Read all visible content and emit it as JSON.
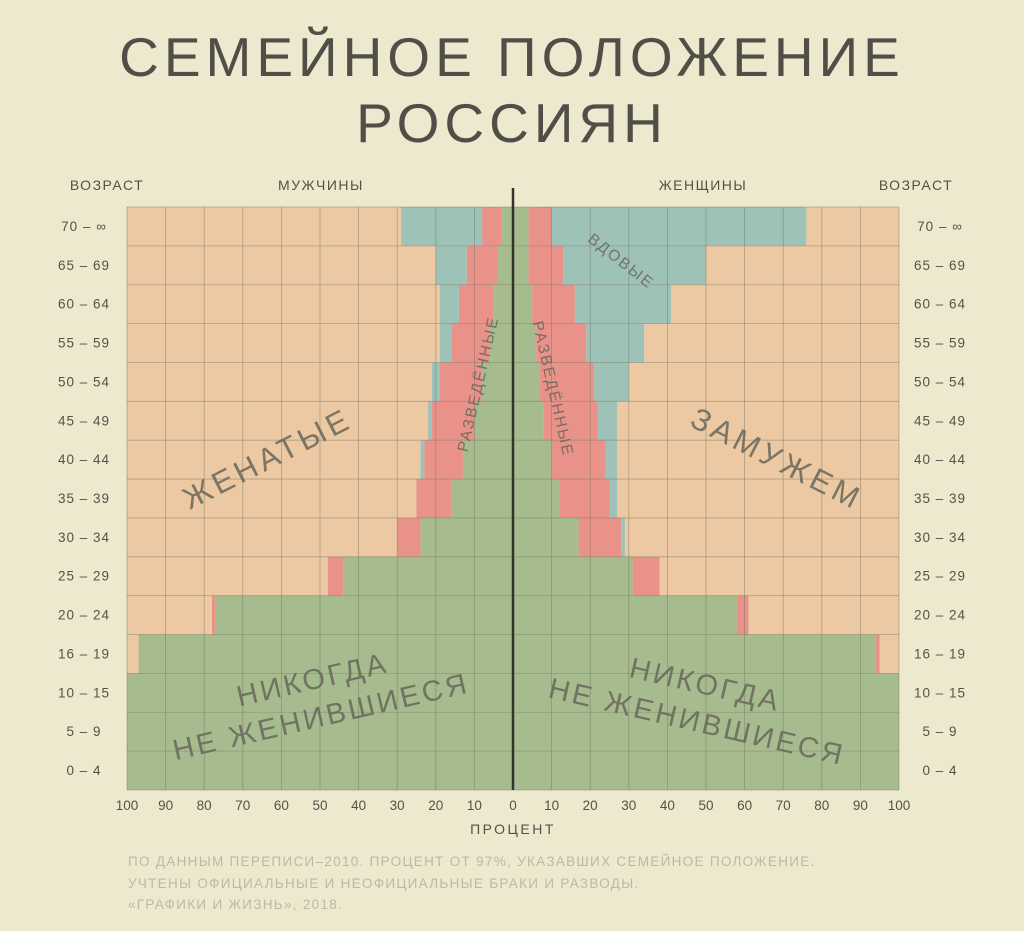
{
  "title": {
    "line1": "СЕМЕЙНОЕ ПОЛОЖЕНИЕ",
    "line2": "РОССИЯН"
  },
  "footer": {
    "line1": "ПО ДАННЫМ ПЕРЕПИСИ–2010. ПРОЦЕНТ ОТ 97%, УКАЗАВШИХ СЕМЕЙНОЕ ПОЛОЖЕНИЕ.",
    "line2": "УЧТЕНЫ ОФИЦИАЛЬНЫЕ И НЕОФИЦИАЛЬНЫЕ БРАКИ И РАЗВОДЫ.",
    "line3": "«ГРАФИКИ И ЖИЗНЬ», 2018."
  },
  "chart_data": {
    "type": "bar",
    "subtype": "population-pyramid-100pct-stacked",
    "title": "СЕМЕЙНОЕ ПОЛОЖЕНИЕ РОССИЯН",
    "xlabel": "ПРОЦЕНТ",
    "age_axis_label": "ВОЗРАСТ",
    "left_group_label": "МУЖЧИНЫ",
    "right_group_label": "ЖЕНЩИНЫ",
    "age_groups_top_to_bottom": [
      "70 – ∞",
      "65 – 69",
      "60 – 64",
      "55 – 59",
      "50 – 54",
      "45 – 49",
      "40 – 44",
      "35 – 39",
      "30 – 34",
      "25 – 29",
      "20 – 24",
      "16 – 19",
      "10 – 15",
      "5 – 9",
      "0 – 4"
    ],
    "x_ticks": [
      0,
      10,
      20,
      30,
      40,
      50,
      60,
      70,
      80,
      90,
      100
    ],
    "xlim_each_side": [
      0,
      100
    ],
    "grid": true,
    "stack_order_from_center": [
      "never_married",
      "divorced",
      "widowed",
      "married"
    ],
    "category_labels": {
      "never_married": "НИКОГДА НЕ ЖЕНИВШИЕСЯ",
      "divorced": "РАЗВЕДЁННЫЕ",
      "widowed": "ВДОВЫЕ",
      "married_men": "ЖЕНАТЫЕ",
      "married_women": "ЗАМУЖЕМ"
    },
    "colors": {
      "never_married": "#A6BC8E",
      "divorced": "#E9928A",
      "widowed": "#9FC2B8",
      "married": "#ECC9A2",
      "background": "#ECE9CE",
      "grid": "#72705C",
      "axis": "#33322C",
      "text": "#53524A",
      "area_label": "#67665A",
      "footnote": "#BCB8A6"
    },
    "series_note": "rows follow age_groups_top_to_bottom; values are percent in stack_order_from_center [never_married, divorced, widowed, married]",
    "series": {
      "men": [
        [
          3,
          5,
          21,
          71
        ],
        [
          4,
          8,
          8,
          80
        ],
        [
          5,
          9,
          5,
          81
        ],
        [
          6,
          10,
          3,
          81
        ],
        [
          8,
          11,
          2,
          79
        ],
        [
          10,
          11,
          1,
          78
        ],
        [
          13,
          10,
          1,
          76
        ],
        [
          16,
          9,
          0,
          75
        ],
        [
          24,
          6,
          0,
          70
        ],
        [
          44,
          4,
          0,
          52
        ],
        [
          77,
          1,
          0,
          22
        ],
        [
          97,
          0,
          0,
          3
        ],
        [
          100,
          0,
          0,
          0
        ],
        [
          100,
          0,
          0,
          0
        ],
        [
          100,
          0,
          0,
          0
        ]
      ],
      "women": [
        [
          4,
          6,
          66,
          24
        ],
        [
          4,
          9,
          37,
          50
        ],
        [
          5,
          11,
          25,
          59
        ],
        [
          6,
          13,
          15,
          66
        ],
        [
          7,
          14,
          9,
          70
        ],
        [
          8,
          14,
          5,
          73
        ],
        [
          10,
          14,
          3,
          73
        ],
        [
          12,
          13,
          2,
          73
        ],
        [
          17,
          11,
          1,
          71
        ],
        [
          31,
          7,
          0,
          62
        ],
        [
          58,
          3,
          0,
          39
        ],
        [
          94,
          1,
          0,
          5
        ],
        [
          100,
          0,
          0,
          0
        ],
        [
          100,
          0,
          0,
          0
        ],
        [
          100,
          0,
          0,
          0
        ]
      ]
    },
    "area_labels": [
      {
        "id": "married_men",
        "lines": [
          "ЖЕНАТЫЕ"
        ]
      },
      {
        "id": "married_women",
        "lines": [
          "ЗАМУЖЕМ"
        ]
      },
      {
        "id": "divorced_men",
        "lines": [
          "РАЗВЕДЁННЫЕ"
        ]
      },
      {
        "id": "divorced_women",
        "lines": [
          "РАЗВЕДЁННЫЕ"
        ]
      },
      {
        "id": "widowed_women",
        "lines": [
          "ВДОВЫЕ"
        ]
      },
      {
        "id": "never_married_men",
        "lines": [
          "НИКОГДА",
          "НЕ ЖЕНИВШИЕСЯ"
        ]
      },
      {
        "id": "never_married_women",
        "lines": [
          "НИКОГДА",
          "НЕ ЖЕНИВШИЕСЯ"
        ]
      }
    ]
  }
}
